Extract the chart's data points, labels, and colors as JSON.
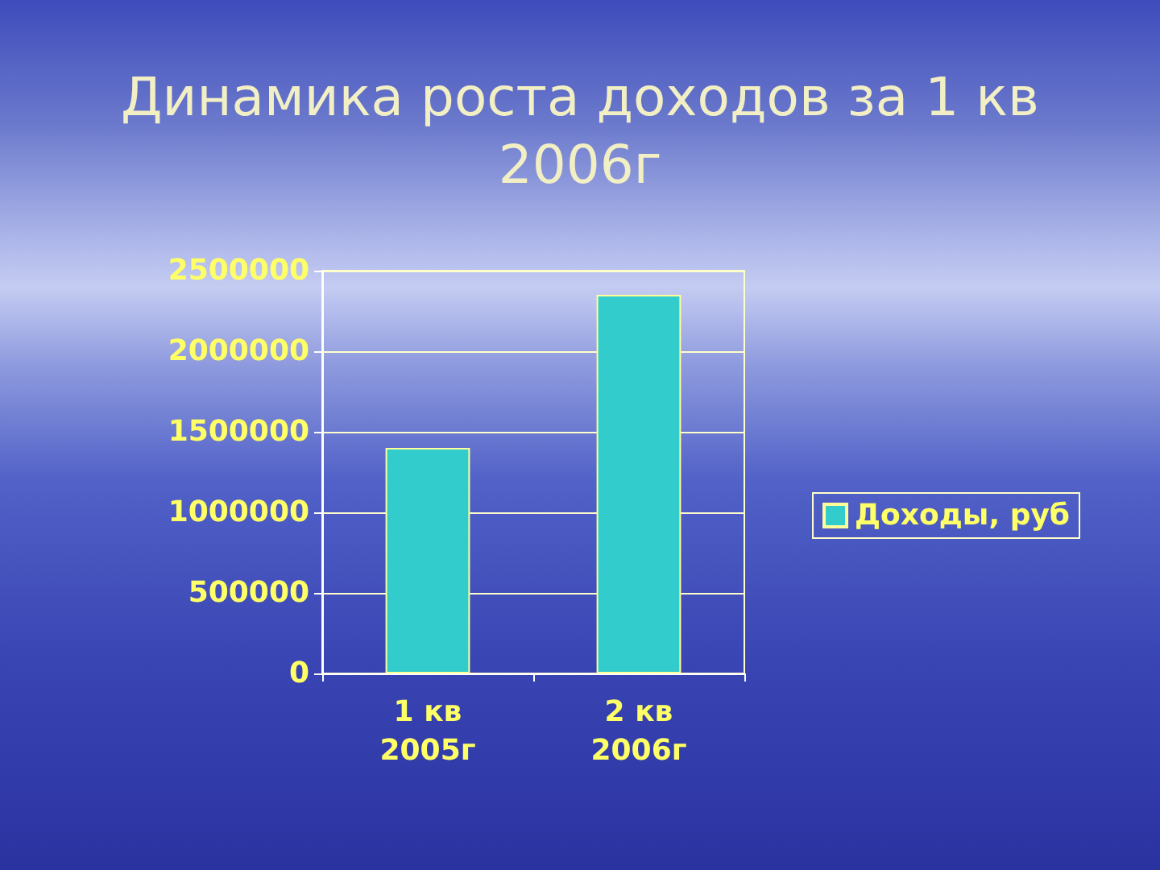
{
  "chart_data": {
    "type": "bar",
    "title": "Динамика роста доходов за 1 кв 2006г",
    "categories": [
      "1 кв 2005г",
      "2 кв 2006г"
    ],
    "series": [
      {
        "name": "Доходы, руб",
        "color": "#33cccc",
        "values": [
          1400000,
          2350000
        ]
      }
    ],
    "ylim": [
      0,
      2500000
    ],
    "yticks": [
      0,
      500000,
      1000000,
      1500000,
      2000000,
      2500000
    ],
    "grid": "y",
    "legend": "right"
  }
}
